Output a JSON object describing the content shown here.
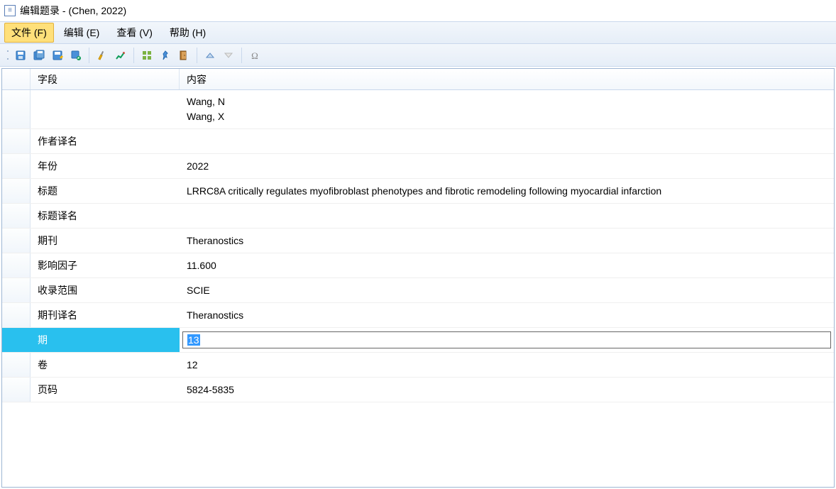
{
  "window": {
    "title": "编辑题录 - (Chen, 2022)"
  },
  "menubar": {
    "items": [
      {
        "label": "文件 (F)",
        "active": true
      },
      {
        "label": "编辑 (E)",
        "active": false
      },
      {
        "label": "查看 (V)",
        "active": false
      },
      {
        "label": "帮助 (H)",
        "active": false
      }
    ]
  },
  "toolbar": {
    "icons": [
      "save",
      "save-all",
      "save-as",
      "save-db",
      "brush",
      "chart",
      "grid",
      "pin",
      "door",
      "up",
      "down",
      "omega"
    ]
  },
  "table": {
    "headers": {
      "field": "字段",
      "content": "内容"
    },
    "rows": [
      {
        "field": "",
        "content": "Wang, N\nWang, X",
        "multiline": true
      },
      {
        "field": "作者译名",
        "content": ""
      },
      {
        "field": "年份",
        "content": "2022"
      },
      {
        "field": "标题",
        "content": "LRRC8A critically regulates myofibroblast phenotypes and fibrotic remodeling  following myocardial infarction",
        "multiline": true
      },
      {
        "field": "标题译名",
        "content": ""
      },
      {
        "field": "期刊",
        "content": "Theranostics"
      },
      {
        "field": "影响因子",
        "content": "  11.600"
      },
      {
        "field": "收录范围",
        "content": "SCIE"
      },
      {
        "field": "期刊译名",
        "content": "Theranostics"
      },
      {
        "field": "期",
        "content": "13",
        "selected": true,
        "editing": true
      },
      {
        "field": "卷",
        "content": "12"
      },
      {
        "field": "页码",
        "content": "5824-5835"
      }
    ]
  }
}
